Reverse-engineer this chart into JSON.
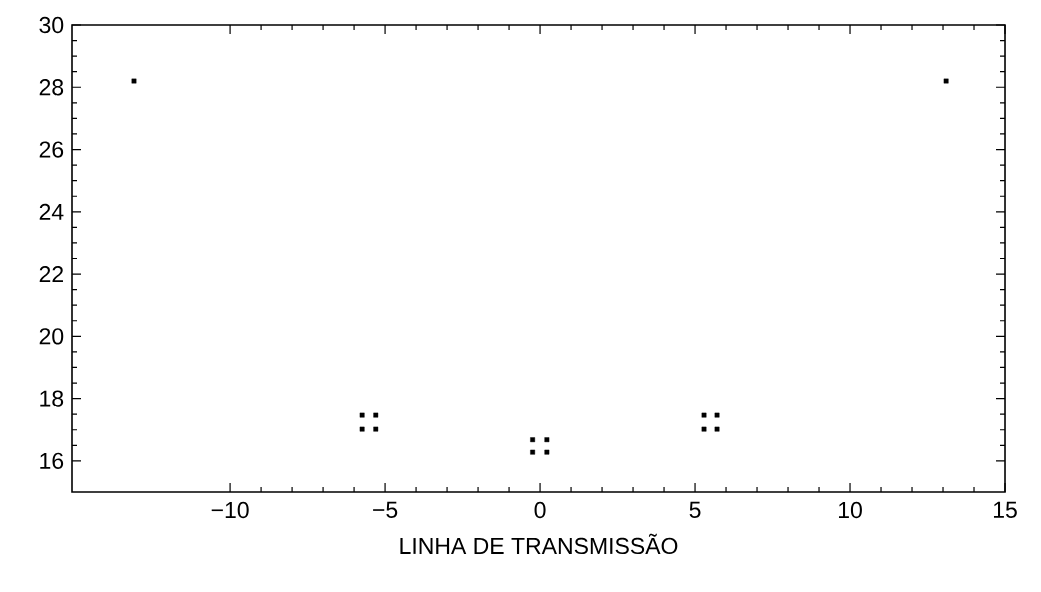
{
  "chart_data": {
    "type": "scatter",
    "xlabel": "LINHA  DE TRANSMISSÃO",
    "x": [
      -13.1,
      13.1,
      -5.74,
      -5.3,
      -5.74,
      -5.3,
      -0.24,
      0.22,
      -0.24,
      0.22,
      5.29,
      5.71,
      5.29,
      5.71
    ],
    "values": [
      28.2,
      28.2,
      17.47,
      17.47,
      17.02,
      17.02,
      16.68,
      16.68,
      16.28,
      16.28,
      17.47,
      17.47,
      17.02,
      17.02
    ],
    "color": "#000000",
    "marker": "square",
    "xlim": [
      -15.1,
      15
    ],
    "ylim": [
      15,
      30
    ],
    "xticks": [
      {
        "value": -10,
        "label": "−10"
      },
      {
        "value": -5,
        "label": "−5"
      },
      0,
      5,
      10,
      15
    ],
    "yticks": [
      16,
      18,
      20,
      22,
      24,
      26,
      28,
      30
    ],
    "grid": false
  }
}
